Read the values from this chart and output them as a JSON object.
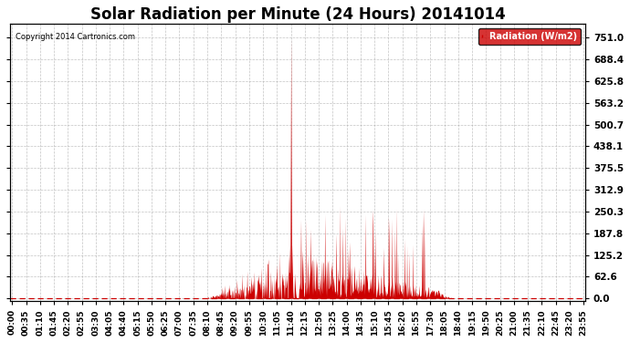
{
  "title": "Solar Radiation per Minute (24 Hours) 20141014",
  "copyright_text": "Copyright 2014 Cartronics.com",
  "legend_label": "Radiation (W/m2)",
  "legend_bg": "#cc0000",
  "legend_text_color": "#ffffff",
  "bar_color": "#cc0000",
  "background_color": "#ffffff",
  "grid_color": "#aaaaaa",
  "yticks": [
    0.0,
    62.6,
    125.2,
    187.8,
    250.3,
    312.9,
    375.5,
    438.1,
    500.7,
    563.2,
    625.8,
    688.4,
    751.0
  ],
  "ymax": 790,
  "ymin": -8,
  "total_minutes": 1440,
  "peak_minute": 700,
  "peak_value": 751.0,
  "title_fontsize": 12,
  "axis_fontsize": 6.5,
  "ylabel_fontsize": 7.5,
  "xtick_step": 35
}
